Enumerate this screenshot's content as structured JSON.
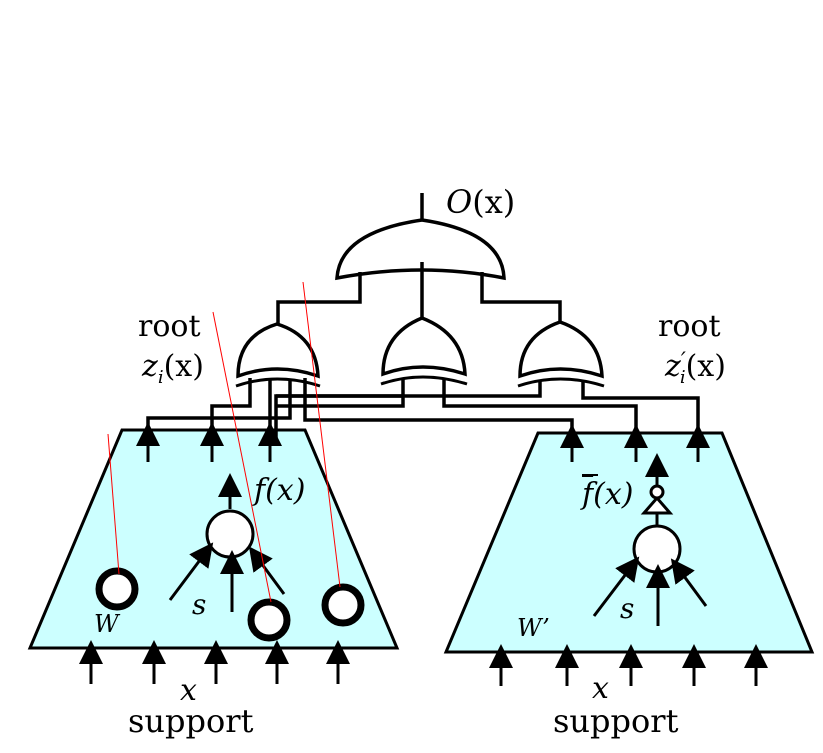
{
  "output": {
    "name": "O",
    "arg": "(x)"
  },
  "left": {
    "root_label": "root",
    "root_func": "z",
    "root_sub": "i",
    "root_arg": "(x)",
    "func": "f(x)",
    "s_label": "s",
    "w_label": "W",
    "x_label": "x",
    "support_label": "support"
  },
  "right": {
    "root_label": "root",
    "root_func": "z",
    "root_prime": "′",
    "root_sub": "i",
    "root_arg": "(x)",
    "func": "f",
    "func_arg": "(x)",
    "s_label": "s",
    "w_label": "W’",
    "x_label": "x",
    "support_label": "support"
  },
  "colors": {
    "trapezoid_fill": "#ccffff",
    "stroke": "#000000",
    "red_line": "#ff0000"
  }
}
